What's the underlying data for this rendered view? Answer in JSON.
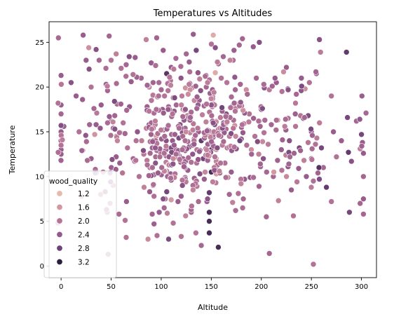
{
  "chart_data": {
    "type": "scatter",
    "title": "Temperatures vs Altitudes",
    "xlabel": "Altitude",
    "ylabel": "Temperature",
    "xlim": [
      -12,
      315
    ],
    "ylim": [
      -1.3,
      27.3
    ],
    "xticks": [
      0,
      50,
      100,
      150,
      200,
      250,
      300
    ],
    "yticks": [
      0,
      5,
      10,
      15,
      20,
      25
    ],
    "legend": {
      "title": "wood_quality",
      "placement": "lower-left",
      "entries": [
        {
          "label": "1.2",
          "color": "#e6b9ad"
        },
        {
          "label": "1.6",
          "color": "#d297a0"
        },
        {
          "label": "2.0",
          "color": "#b57497"
        },
        {
          "label": "2.4",
          "color": "#955a8c"
        },
        {
          "label": "2.8",
          "color": "#6d4277"
        },
        {
          "label": "3.2",
          "color": "#2d1e3e"
        }
      ]
    },
    "hue_range": [
      1.0,
      3.4
    ],
    "grid": false,
    "points_random_seed": 7,
    "points": [
      [
        0,
        21.3,
        2.4
      ],
      [
        0,
        18.0,
        2.4
      ],
      [
        -3,
        18.2,
        2.0
      ],
      [
        0,
        15.0,
        2.4
      ],
      [
        0,
        14.0,
        2.4
      ],
      [
        0,
        13.0,
        2.4
      ],
      [
        0,
        12.5,
        2.4
      ],
      [
        0,
        17.0,
        2.2
      ],
      [
        0,
        13.5,
        2.0
      ],
      [
        10,
        20.5,
        2.6
      ],
      [
        15,
        19.0,
        2.4
      ],
      [
        18,
        15.0,
        2.0
      ],
      [
        22,
        25.8,
        2.4
      ],
      [
        25,
        23.0,
        2.4
      ],
      [
        28,
        22.0,
        2.6
      ],
      [
        30,
        20.0,
        2.0
      ],
      [
        30,
        12.0,
        2.4
      ],
      [
        35,
        24.2,
        2.6
      ],
      [
        35,
        15.8,
        2.4
      ],
      [
        38,
        23.0,
        2.2
      ],
      [
        40,
        18.0,
        2.4
      ],
      [
        42,
        10.5,
        2.0
      ],
      [
        45,
        20.3,
        2.4
      ],
      [
        46,
        6.0,
        2.4
      ],
      [
        47,
        1.3,
        2.4
      ],
      [
        48,
        25.7,
        2.2
      ],
      [
        50,
        23.0,
        2.0
      ],
      [
        50,
        16.2,
        2.4
      ],
      [
        52,
        9.0,
        2.0
      ],
      [
        55,
        23.7,
        1.8
      ],
      [
        55,
        12.2,
        2.4
      ],
      [
        60,
        22.1,
        2.0
      ],
      [
        62,
        16.0,
        2.0
      ],
      [
        64,
        5.1,
        2.0
      ],
      [
        65,
        3.2,
        2.0
      ],
      [
        65,
        22.5,
        2.2
      ],
      [
        68,
        23.4,
        2.6
      ],
      [
        70,
        20.6,
        2.4
      ],
      [
        74,
        23.3,
        2.4
      ],
      [
        72,
        12.0,
        2.2
      ],
      [
        75,
        14.0,
        2.0
      ],
      [
        78,
        10.0,
        2.0
      ],
      [
        80,
        21.0,
        2.2
      ],
      [
        83,
        12.5,
        2.0
      ],
      [
        85,
        25.3,
        1.8
      ],
      [
        88,
        20.0,
        1.8
      ],
      [
        90,
        22.7,
        2.4
      ],
      [
        92,
        9.0,
        2.0
      ],
      [
        95,
        13.0,
        2.2
      ],
      [
        98,
        6.0,
        2.4
      ],
      [
        100,
        19.7,
        2.2
      ],
      [
        102,
        24.1,
        2.4
      ],
      [
        104,
        7.5,
        2.0
      ],
      [
        105,
        14.0,
        2.6
      ],
      [
        110,
        22.2,
        2.4
      ],
      [
        112,
        4.8,
        2.0
      ],
      [
        115,
        18.0,
        2.2
      ],
      [
        118,
        12.3,
        2.4
      ],
      [
        120,
        3.3,
        2.0
      ],
      [
        122,
        15.3,
        2.4
      ],
      [
        125,
        23.7,
        2.2
      ],
      [
        128,
        22.8,
        2.4
      ],
      [
        130,
        6.0,
        2.2
      ],
      [
        132,
        25.9,
        2.4
      ],
      [
        135,
        24.1,
        2.8
      ],
      [
        138,
        18.5,
        2.4
      ],
      [
        140,
        2.3,
        2.2
      ],
      [
        140,
        14.0,
        3.0
      ],
      [
        142,
        12.0,
        2.8
      ],
      [
        145,
        20.0,
        2.2
      ],
      [
        148,
        8.2,
        3.0
      ],
      [
        148,
        6.0,
        3.2
      ],
      [
        148,
        5.0,
        3.2
      ],
      [
        148,
        3.7,
        3.2
      ],
      [
        150,
        10.5,
        3.2
      ],
      [
        150,
        13.0,
        3.0
      ],
      [
        152,
        25.8,
        1.2
      ],
      [
        154,
        21.6,
        1.2
      ],
      [
        155,
        16.2,
        1.2
      ],
      [
        155,
        13.0,
        1.4
      ],
      [
        155,
        12.0,
        1.4
      ],
      [
        155,
        11.2,
        1.4
      ],
      [
        155,
        10.3,
        1.4
      ],
      [
        157,
        2.1,
        3.2
      ],
      [
        160,
        21.0,
        2.0
      ],
      [
        162,
        23.4,
        2.2
      ],
      [
        165,
        17.0,
        2.6
      ],
      [
        168,
        8.0,
        2.2
      ],
      [
        170,
        10.5,
        2.4
      ],
      [
        172,
        18.0,
        2.2
      ],
      [
        175,
        13.1,
        2.6
      ],
      [
        178,
        24.7,
        2.2
      ],
      [
        180,
        14.2,
        2.4
      ],
      [
        182,
        7.5,
        2.2
      ],
      [
        185,
        19.7,
        1.6
      ],
      [
        188,
        17.0,
        2.0
      ],
      [
        190,
        13.0,
        1.6
      ],
      [
        192,
        24.5,
        2.4
      ],
      [
        195,
        21.0,
        2.2
      ],
      [
        198,
        25.0,
        2.6
      ],
      [
        200,
        17.5,
        2.4
      ],
      [
        202,
        12.0,
        2.6
      ],
      [
        205,
        5.5,
        2.2
      ],
      [
        208,
        1.4,
        2.2
      ],
      [
        210,
        15.8,
        2.2
      ],
      [
        212,
        10.0,
        2.2
      ],
      [
        215,
        20.5,
        2.4
      ],
      [
        220,
        13.0,
        2.4
      ],
      [
        225,
        22.2,
        2.4
      ],
      [
        228,
        14.0,
        2.6
      ],
      [
        230,
        8.5,
        2.4
      ],
      [
        232,
        5.6,
        2.0
      ],
      [
        235,
        19.2,
        2.2
      ],
      [
        238,
        13.2,
        2.8
      ],
      [
        240,
        21.0,
        2.4
      ],
      [
        242,
        16.5,
        2.6
      ],
      [
        245,
        10.0,
        2.4
      ],
      [
        248,
        20.5,
        2.0
      ],
      [
        250,
        15.0,
        2.4
      ],
      [
        250,
        12.0,
        2.4
      ],
      [
        252,
        0.2,
        2.0
      ],
      [
        255,
        21.5,
        2.2
      ],
      [
        258,
        25.3,
        2.6
      ],
      [
        260,
        13.2,
        2.8
      ],
      [
        262,
        11.0,
        2.2
      ],
      [
        265,
        8.8,
        3.0
      ],
      [
        270,
        19.0,
        2.0
      ],
      [
        270,
        7.2,
        2.0
      ],
      [
        272,
        15.0,
        2.4
      ],
      [
        275,
        12.2,
        2.0
      ],
      [
        280,
        14.0,
        2.4
      ],
      [
        285,
        23.9,
        3.0
      ],
      [
        286,
        16.6,
        2.8
      ],
      [
        287,
        12.7,
        3.0
      ],
      [
        288,
        6.0,
        2.8
      ],
      [
        290,
        11.7,
        2.6
      ],
      [
        295,
        16.2,
        2.2
      ],
      [
        300,
        14.7,
        2.8
      ],
      [
        301,
        13.8,
        2.4
      ],
      [
        302,
        12.6,
        2.4
      ],
      [
        302,
        10.0,
        2.2
      ],
      [
        302,
        7.5,
        2.4
      ],
      [
        302,
        5.8,
        2.2
      ]
    ]
  }
}
